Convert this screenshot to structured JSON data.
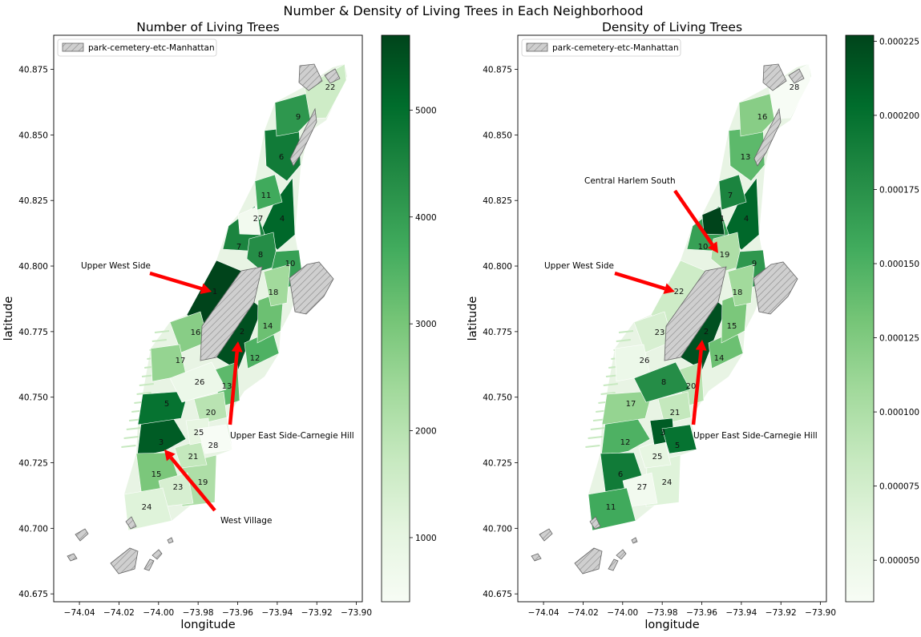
{
  "suptitle": "Number & Density of Living Trees in Each Neighborhood",
  "colors": {
    "cmap": [
      "#f7fcf5",
      "#e5f5e0",
      "#c7e9c0",
      "#a1d99b",
      "#74c476",
      "#41ab5d",
      "#238b45",
      "#006d2c",
      "#00441b"
    ],
    "park_fill": "#cfcfcf",
    "park_edge": "#666666",
    "arrow": "#ff0000"
  },
  "chart_data": [
    {
      "type": "choropleth",
      "title": "Number of Living Trees",
      "xlabel": "longitude",
      "ylabel": "latitude",
      "xlim": [
        -74.053,
        -73.897
      ],
      "ylim": [
        40.672,
        40.888
      ],
      "xticks": [
        "−74.04",
        "−74.02",
        "−74.00",
        "−73.98",
        "−73.96",
        "−73.94",
        "−73.92",
        "−73.90"
      ],
      "yticks": [
        "40.675",
        "40.700",
        "40.725",
        "40.750",
        "40.775",
        "40.800",
        "40.825",
        "40.850",
        "40.875"
      ],
      "legend": {
        "label": "park-cemetery-etc-Manhattan",
        "loc": "upper left"
      },
      "colorbar": {
        "vmin": 400,
        "vmax": 5700,
        "ticks": [
          "1000",
          "2000",
          "3000",
          "4000",
          "5000"
        ],
        "tickvalues": [
          1000,
          2000,
          3000,
          4000,
          5000
        ]
      },
      "rank_labels": [
        "1",
        "2",
        "3",
        "4",
        "5",
        "6",
        "7",
        "8",
        "9",
        "10",
        "11",
        "12",
        "13",
        "14",
        "15",
        "16",
        "17",
        "18",
        "19",
        "20",
        "21",
        "22",
        "23",
        "24",
        "25",
        "26",
        "27",
        "28"
      ],
      "annotations": [
        {
          "text": "Upper West Side",
          "target_rank": "1"
        },
        {
          "text": "Upper East Side-Carnegie Hill",
          "target_rank": "2"
        },
        {
          "text": "West Village",
          "target_rank": "3"
        }
      ]
    },
    {
      "type": "choropleth",
      "title": "Density of Living Trees",
      "xlabel": "longitude",
      "ylabel": "latitude",
      "xlim": [
        -74.053,
        -73.897
      ],
      "ylim": [
        40.672,
        40.888
      ],
      "xticks": [
        "−74.04",
        "−74.02",
        "−74.00",
        "−73.98",
        "−73.96",
        "−73.94",
        "−73.92",
        "−73.90"
      ],
      "yticks": [
        "40.675",
        "40.700",
        "40.725",
        "40.750",
        "40.775",
        "40.800",
        "40.825",
        "40.850",
        "40.875"
      ],
      "legend": {
        "label": "park-cemetery-etc-Manhattan",
        "loc": "upper left"
      },
      "colorbar": {
        "vmin": 3.6e-05,
        "vmax": 0.000227,
        "ticks": [
          "0.000050",
          "0.000075",
          "0.000100",
          "0.000125",
          "0.000150",
          "0.000175",
          "0.000200",
          "0.000225"
        ],
        "tickvalues": [
          5e-05,
          7.5e-05,
          0.0001,
          0.000125,
          0.00015,
          0.000175,
          0.0002,
          0.000225
        ]
      },
      "rank_labels": [
        "1",
        "2",
        "3",
        "4",
        "5",
        "6",
        "7",
        "8",
        "9",
        "10",
        "11",
        "12",
        "13",
        "14",
        "15",
        "16",
        "17",
        "18",
        "19",
        "20",
        "21",
        "22",
        "23",
        "24",
        "25",
        "26",
        "27",
        "28"
      ],
      "annotations": [
        {
          "text": "Central Harlem South",
          "target_rank": "2"
        },
        {
          "text": "Upper West Side",
          "target_rank": "3"
        },
        {
          "text": "Upper East Side-Carnegie Hill",
          "target_rank": "1"
        }
      ]
    }
  ]
}
